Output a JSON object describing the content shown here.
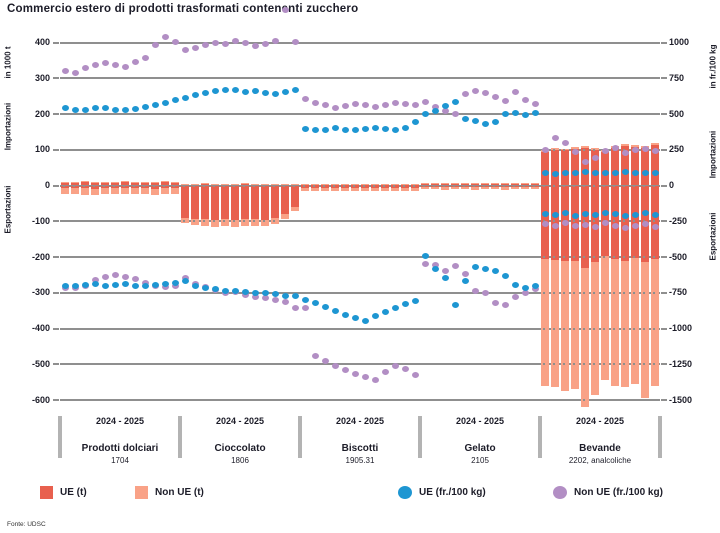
{
  "title": "Commercio estero di prodotti trasformati contenenti zucchero",
  "footer": "Fonte: UDSC",
  "colors": {
    "bar_eu": "#e8604e",
    "bar_noneu": "#f9a287",
    "dot_eu": "#1e96d2",
    "dot_noneu": "#b28ec4",
    "grid": "#8f8f8f",
    "separator": "#b3b3b3",
    "text": "#1c1c28"
  },
  "axes": {
    "left_title": "in 1000 t",
    "right_title": "in fr./100 kg",
    "left_upper": "Importazioni",
    "left_lower": "Esportazioni",
    "right_upper": "Importazioni",
    "right_lower": "Esportazioni",
    "left_ticks": [
      400,
      300,
      200,
      100,
      0,
      -100,
      -200,
      -300,
      -400,
      -500,
      -600
    ],
    "right_ticks": [
      1000,
      750,
      500,
      250,
      0,
      -250,
      -500,
      -750,
      -1000,
      -1250,
      -1500
    ]
  },
  "legend": [
    {
      "label": "UE (t)",
      "marker": "square",
      "color": "#e8604e"
    },
    {
      "label": "Non UE (t)",
      "marker": "square",
      "color": "#f9a287"
    },
    {
      "label": "UE (fr./100 kg)",
      "marker": "circle",
      "color": "#1e96d2"
    },
    {
      "label": "Non UE (fr./100 kg)",
      "marker": "circle",
      "color": "#b28ec4"
    }
  ],
  "chart_data": {
    "type": "bar",
    "subtype": "stacked-bars-with-scatter-prices",
    "bar_unit": "1000 t (left axis)",
    "dot_unit": "fr./100 kg (right axis)",
    "left_axis_range": [
      -600,
      400
    ],
    "right_axis_range": [
      -1500,
      1000
    ],
    "months_per_group": 12,
    "groups": [
      {
        "name": "Prodotti dolciari",
        "tariff": "1704",
        "period": "2024 - 2025",
        "import_t_eu": [
          8,
          7,
          9,
          8,
          7,
          8,
          9,
          8,
          7,
          8,
          9,
          8
        ],
        "import_t_noneu": [
          3,
          3,
          4,
          3,
          3,
          3,
          4,
          3,
          3,
          3,
          4,
          3
        ],
        "export_t_eu": [
          8,
          7,
          8,
          9,
          8,
          8,
          7,
          8,
          8,
          9,
          8,
          8
        ],
        "export_t_noneu": [
          17,
          16,
          18,
          17,
          16,
          17,
          18,
          17,
          16,
          18,
          17,
          16
        ],
        "price_import_eu": [
          540,
          525,
          530,
          545,
          540,
          530,
          525,
          535,
          550,
          565,
          580,
          600
        ],
        "price_import_noneu": [
          800,
          785,
          820,
          840,
          860,
          845,
          830,
          865,
          895,
          980,
          1040,
          1005
        ],
        "price_export_eu": [
          -700,
          -705,
          -695,
          -690,
          -700,
          -695,
          -690,
          -700,
          -705,
          -695,
          -690,
          -685
        ],
        "price_export_noneu": [
          -720,
          -715,
          -700,
          -660,
          -640,
          -625,
          -640,
          -655,
          -680,
          -700,
          -710,
          -705
        ]
      },
      {
        "name": "Cioccolato",
        "tariff": "1806",
        "period": "2024 - 2025",
        "import_t_eu": [
          4,
          3,
          4,
          4,
          3,
          4,
          4,
          3,
          4,
          4,
          3,
          4
        ],
        "import_t_noneu": [
          1,
          1,
          2,
          1,
          1,
          1,
          2,
          1,
          1,
          1,
          2,
          1
        ],
        "export_t_eu": [
          90,
          93,
          95,
          97,
          94,
          96,
          95,
          93,
          96,
          90,
          80,
          60
        ],
        "export_t_noneu": [
          15,
          18,
          19,
          18,
          20,
          19,
          18,
          19,
          18,
          17,
          15,
          12
        ],
        "price_import_eu": [
          615,
          630,
          645,
          660,
          670,
          665,
          655,
          660,
          650,
          640,
          655,
          670
        ],
        "price_import_noneu": [
          950,
          965,
          985,
          1000,
          990,
          1010,
          995,
          975,
          990,
          1010,
          1230,
          1005
        ],
        "price_export_eu": [
          -665,
          -700,
          -715,
          -725,
          -740,
          -735,
          -745,
          -755,
          -750,
          -760,
          -770,
          -775
        ],
        "price_export_noneu": [
          -650,
          -690,
          -710,
          -730,
          -755,
          -745,
          -765,
          -780,
          -790,
          -800,
          -815,
          -855
        ]
      },
      {
        "name": "Biscotti",
        "tariff": "1905.31",
        "period": "2024 - 2025",
        "import_t_eu": [
          2,
          2,
          2,
          2,
          2,
          2,
          2,
          2,
          2,
          2,
          2,
          2
        ],
        "import_t_noneu": [
          1,
          1,
          1,
          1,
          1,
          1,
          1,
          1,
          1,
          1,
          1,
          1
        ],
        "export_t_eu": [
          6,
          6,
          7,
          6,
          6,
          7,
          6,
          6,
          7,
          6,
          6,
          6
        ],
        "export_t_noneu": [
          9,
          8,
          9,
          9,
          8,
          9,
          9,
          8,
          9,
          9,
          8,
          9
        ],
        "price_import_eu": [
          395,
          385,
          390,
          400,
          390,
          385,
          395,
          405,
          395,
          390,
          400,
          445
        ],
        "price_import_noneu": [
          605,
          580,
          560,
          545,
          555,
          570,
          560,
          550,
          565,
          580,
          570,
          560
        ],
        "price_export_eu": [
          -800,
          -825,
          -850,
          -880,
          -905,
          -925,
          -945,
          -915,
          -885,
          -855,
          -830,
          -810
        ],
        "price_export_noneu": [
          -860,
          -1190,
          -1230,
          -1260,
          -1290,
          -1315,
          -1340,
          -1360,
          -1305,
          -1260,
          -1285,
          -1325
        ]
      },
      {
        "name": "Gelato",
        "tariff": "2105",
        "period": "2024 - 2025",
        "import_t_eu": [
          4,
          4,
          5,
          4,
          4,
          5,
          4,
          4,
          5,
          4,
          4,
          4
        ],
        "import_t_noneu": [
          2,
          2,
          2,
          2,
          2,
          2,
          2,
          2,
          2,
          2,
          2,
          2
        ],
        "export_t_eu": [
          5,
          5,
          5,
          5,
          5,
          5,
          5,
          5,
          5,
          5,
          5,
          5
        ],
        "export_t_noneu": [
          6,
          6,
          7,
          6,
          6,
          7,
          6,
          6,
          7,
          6,
          6,
          6
        ],
        "price_import_eu": [
          500,
          520,
          555,
          585,
          465,
          450,
          430,
          445,
          500,
          505,
          490,
          505
        ],
        "price_import_noneu": [
          585,
          550,
          520,
          500,
          640,
          660,
          645,
          620,
          590,
          655,
          600,
          570
        ],
        "price_export_eu": [
          -490,
          -585,
          -645,
          -835,
          -665,
          -570,
          -585,
          -595,
          -630,
          -695,
          -720,
          -700
        ],
        "price_export_noneu": [
          -550,
          -555,
          -600,
          -560,
          -620,
          -735,
          -750,
          -820,
          -835,
          -780,
          -750,
          -725
        ]
      },
      {
        "name": "Bevande",
        "tariff": "2202, analcoliche",
        "period": "2024 - 2025",
        "import_t_eu": [
          95,
          100,
          98,
          102,
          105,
          100,
          95,
          105,
          110,
          108,
          105,
          112
        ],
        "import_t_noneu": [
          5,
          6,
          5,
          6,
          6,
          5,
          5,
          6,
          6,
          6,
          5,
          6
        ],
        "export_t_eu": [
          205,
          208,
          212,
          210,
          232,
          215,
          198,
          205,
          210,
          202,
          215,
          205
        ],
        "export_t_noneu": [
          355,
          357,
          363,
          360,
          388,
          370,
          347,
          355,
          355,
          353,
          380,
          355
        ],
        "price_import_eu": [
          85,
          80,
          90,
          85,
          95,
          90,
          85,
          90,
          95,
          90,
          85,
          90
        ],
        "price_import_noneu": [
          250,
          330,
          300,
          235,
          165,
          195,
          240,
          260,
          230,
          245,
          255,
          240
        ],
        "price_export_eu": [
          -200,
          -205,
          -195,
          -210,
          -200,
          -205,
          -195,
          -200,
          -210,
          -205,
          -195,
          -205
        ],
        "price_export_noneu": [
          -270,
          -280,
          -260,
          -285,
          -275,
          -290,
          -265,
          -280,
          -295,
          -285,
          -270,
          -290
        ]
      }
    ]
  }
}
